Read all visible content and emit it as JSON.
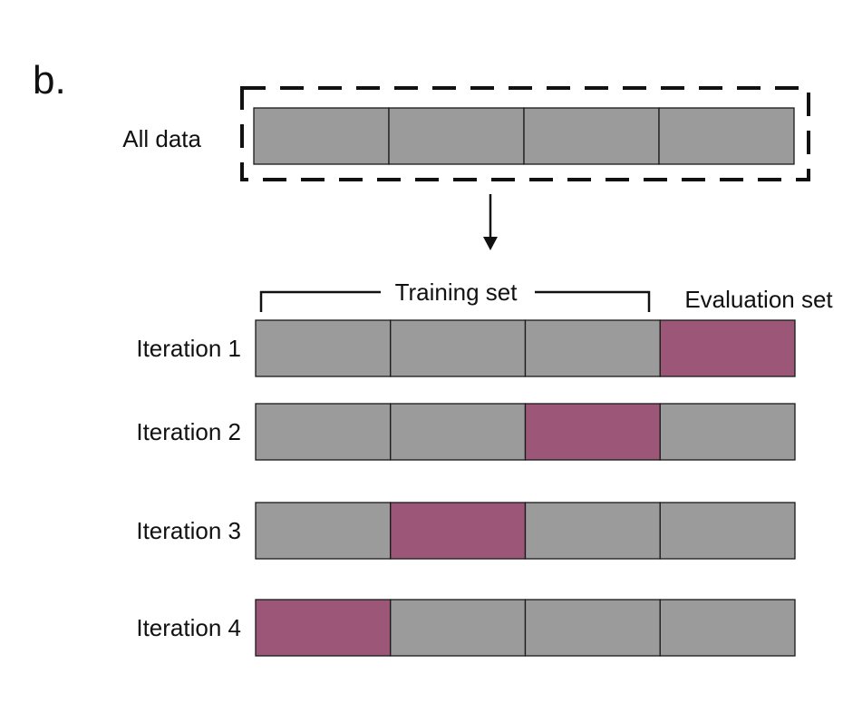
{
  "panel_letter": "b.",
  "all_data": {
    "label": "All data",
    "folds": 4
  },
  "training_label": "Training set",
  "evaluation_label": "Evaluation set",
  "colors": {
    "train_fold": "#9b9b9b",
    "eval_fold": "#9c5778",
    "border": "#1a1a1a"
  },
  "iterations": [
    {
      "label": "Iteration 1",
      "eval_index": 3
    },
    {
      "label": "Iteration 2",
      "eval_index": 2
    },
    {
      "label": "Iteration 3",
      "eval_index": 1
    },
    {
      "label": "Iteration 4",
      "eval_index": 0
    }
  ]
}
